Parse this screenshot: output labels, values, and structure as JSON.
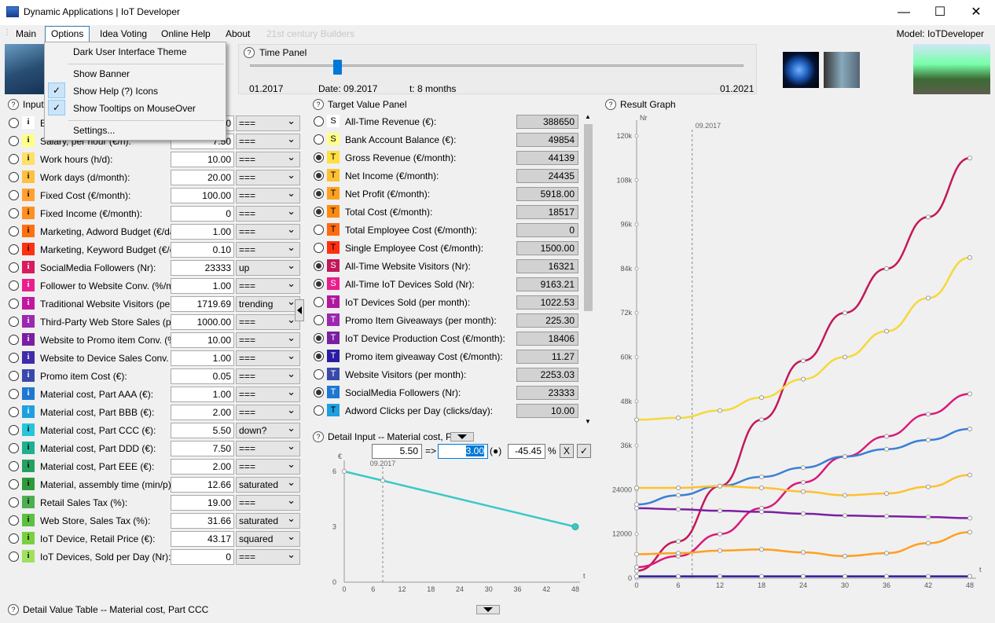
{
  "window": {
    "title": "Dynamic Applications | IoT Developer",
    "min": "—",
    "max": "☐",
    "close": "✕"
  },
  "menu": {
    "items": [
      "Main",
      "Options",
      "Idea Voting",
      "Online Help",
      "About",
      "21st century Builders"
    ],
    "model_label": "Model:  IoTDeveloper"
  },
  "options_menu": {
    "items": [
      "Dark User Interface Theme",
      "Show Banner",
      "Show Help (?) Icons",
      "Show Tooltips on MouseOver",
      "Settings..."
    ],
    "checked": [
      false,
      false,
      true,
      true,
      false
    ]
  },
  "time_panel": {
    "title": "Time Panel",
    "start": "01.2017",
    "date_label": "Date:  09.2017",
    "t_label": "t:   8  months",
    "end": "01.2021",
    "slider_value": 8
  },
  "input_panel": {
    "title": "Input",
    "rows": [
      {
        "label": "E",
        "value": "0",
        "mode": "===",
        "color": "#ffffff",
        "letter": "i",
        "checked": false
      },
      {
        "label": "Salary, per hour (€/h):",
        "value": "7.50",
        "mode": "===",
        "color": "#ffff88",
        "letter": "i",
        "checked": false
      },
      {
        "label": "Work hours (h/d):",
        "value": "10.00",
        "mode": "===",
        "color": "#ffe066",
        "letter": "i",
        "checked": false
      },
      {
        "label": "Work days (d/month):",
        "value": "20.00",
        "mode": "===",
        "color": "#ffc040",
        "letter": "i",
        "checked": false
      },
      {
        "label": "Fixed Cost (€/month):",
        "value": "100.00",
        "mode": "===",
        "color": "#ffa030",
        "letter": "i",
        "checked": false
      },
      {
        "label": "Fixed Income (€/month):",
        "value": "0",
        "mode": "===",
        "color": "#ff9020",
        "letter": "i",
        "checked": false
      },
      {
        "label": "Marketing, Adword Budget (€/day):",
        "value": "1.00",
        "mode": "===",
        "color": "#ff7010",
        "letter": "i",
        "checked": false
      },
      {
        "label": "Marketing, Keyword Budget (€/click",
        "value": "0.10",
        "mode": "===",
        "color": "#ff3010",
        "letter": "i",
        "checked": false
      },
      {
        "label": "SocialMedia Followers (Nr):",
        "value": "23333",
        "mode": "up",
        "color": "#d81b60",
        "letter": "i",
        "checked": false
      },
      {
        "label": "Follower to Website Conv. (%/month",
        "value": "1.00",
        "mode": "===",
        "color": "#e91e8c",
        "letter": "i",
        "checked": false
      },
      {
        "label": "Traditional Website Visitors (per mo",
        "value": "1719.69",
        "mode": "trending",
        "color": "#c2189f",
        "letter": "i",
        "checked": false
      },
      {
        "label": "Third-Party Web Store Sales (per mo",
        "value": "1000.00",
        "mode": "===",
        "color": "#9c27b0",
        "letter": "i",
        "checked": false
      },
      {
        "label": "Website to Promo item Conv. (%/mo",
        "value": "10.00",
        "mode": "===",
        "color": "#7b1fa2",
        "letter": "i",
        "checked": false
      },
      {
        "label": "Website to Device Sales Conv. (%/",
        "value": "1.00",
        "mode": "===",
        "color": "#3f2ca8",
        "letter": "i",
        "checked": false
      },
      {
        "label": "Promo item Cost (€):",
        "value": "0.05",
        "mode": "===",
        "color": "#3949ab",
        "letter": "i",
        "checked": false
      },
      {
        "label": "Material cost, Part AAA (€):",
        "value": "1.00",
        "mode": "===",
        "color": "#1e78d2",
        "letter": "i",
        "checked": false
      },
      {
        "label": "Material cost, Part BBB (€):",
        "value": "2.00",
        "mode": "===",
        "color": "#1ea0e0",
        "letter": "i",
        "checked": false
      },
      {
        "label": "Material cost, Part CCC (€):",
        "value": "5.50",
        "mode": "down?",
        "color": "#26c6da",
        "letter": "i",
        "checked": false
      },
      {
        "label": "Material cost, Part DDD (€):",
        "value": "7.50",
        "mode": "===",
        "color": "#20b090",
        "letter": "i",
        "checked": false
      },
      {
        "label": "Material cost, Part EEE (€):",
        "value": "2.00",
        "mode": "===",
        "color": "#26a060",
        "letter": "i",
        "checked": false
      },
      {
        "label": "Material, assembly time (min/p):",
        "value": "12.66",
        "mode": "saturated",
        "color": "#2e9a3a",
        "letter": "i",
        "checked": false
      },
      {
        "label": "Retail Sales Tax (%):",
        "value": "19.00",
        "mode": "===",
        "color": "#4caf50",
        "letter": "i",
        "checked": false
      },
      {
        "label": "Web Store, Sales Tax (%):",
        "value": "31.66",
        "mode": "saturated",
        "color": "#5cc040",
        "letter": "i",
        "checked": false
      },
      {
        "label": "IoT Device, Retail Price (€):",
        "value": "43.17",
        "mode": "squared",
        "color": "#78d040",
        "letter": "i",
        "checked": false
      },
      {
        "label": "IoT Devices, Sold per Day (Nr):",
        "value": "0",
        "mode": "===",
        "color": "#a0e060",
        "letter": "i",
        "checked": false
      }
    ]
  },
  "target_panel": {
    "title": "Target Value Panel",
    "rows": [
      {
        "label": "All-Time Revenue (€):",
        "value": "388650",
        "letter": "S",
        "color": "#ffffff",
        "checked": false
      },
      {
        "label": "Bank Account Balance (€):",
        "value": "49854",
        "letter": "S",
        "color": "#ffff88",
        "checked": false
      },
      {
        "label": "Gross Revenue (€/month):",
        "value": "44139",
        "letter": "T",
        "color": "#ffe040",
        "checked": true
      },
      {
        "label": "Net Income (€/month):",
        "value": "24435",
        "letter": "T",
        "color": "#ffc030",
        "checked": true
      },
      {
        "label": "Net Profit (€/month):",
        "value": "5918.00",
        "letter": "T",
        "color": "#ffa020",
        "checked": true
      },
      {
        "label": "Total Cost (€/month):",
        "value": "18517",
        "letter": "T",
        "color": "#ff8a10",
        "checked": true
      },
      {
        "label": "Total Employee Cost (€/month):",
        "value": "0",
        "letter": "T",
        "color": "#ff6a10",
        "checked": false
      },
      {
        "label": "Single Employee Cost (€/month):",
        "value": "1500.00",
        "letter": "T",
        "color": "#ff3010",
        "checked": false
      },
      {
        "label": "All-Time Website Visitors (Nr):",
        "value": "16321",
        "letter": "S",
        "color": "#c2185b",
        "checked": true
      },
      {
        "label": "All-Time IoT Devices Sold (Nr):",
        "value": "9163.21",
        "letter": "S",
        "color": "#e91e8c",
        "checked": true
      },
      {
        "label": "IoT Devices Sold (per month):",
        "value": "1022.53",
        "letter": "T",
        "color": "#b0189f",
        "checked": false
      },
      {
        "label": "Promo Item Giveaways (per month):",
        "value": "225.30",
        "letter": "T",
        "color": "#9c27b0",
        "checked": false
      },
      {
        "label": "IoT Device Production Cost (€/month):",
        "value": "18406",
        "letter": "T",
        "color": "#7b1fa2",
        "checked": true
      },
      {
        "label": "Promo item giveaway Cost (€/month):",
        "value": "11.27",
        "letter": "T",
        "color": "#2a1ca0",
        "checked": true
      },
      {
        "label": "Website Visitors (per month):",
        "value": "2253.03",
        "letter": "T",
        "color": "#3949ab",
        "checked": false
      },
      {
        "label": "SocialMedia Followers (Nr):",
        "value": "23333",
        "letter": "T",
        "color": "#1e78d2",
        "checked": true
      },
      {
        "label": "Adword Clicks per Day (clicks/day):",
        "value": "10.00",
        "letter": "T",
        "color": "#1ea0e0",
        "checked": false
      }
    ]
  },
  "detail_input": {
    "title": "Detail Input -- Material cost, Part C",
    "from_value": "5.50",
    "arrow": "=>",
    "to_value": "3.00",
    "mode_symbol": "(●)",
    "pct_value": "-45.45",
    "pct_unit": "%",
    "cancel": "X",
    "ok": "✓"
  },
  "detail_chart": {
    "y_unit": "€",
    "x_unit": "t",
    "marker": "09.2017",
    "y_ticks": [
      "0",
      "3",
      "6"
    ],
    "x_ticks": [
      "0",
      "6",
      "12",
      "18",
      "24",
      "30",
      "36",
      "42",
      "48"
    ]
  },
  "result_graph": {
    "title": "Result Graph",
    "y_unit": "Nr",
    "x_unit": "t",
    "marker": "09.2017",
    "y_ticks": [
      "0",
      "12000",
      "24000",
      "36k",
      "48k",
      "60k",
      "72k",
      "84k",
      "96k",
      "108k",
      "120k"
    ],
    "x_ticks": [
      "0",
      "6",
      "12",
      "18",
      "24",
      "30",
      "36",
      "42",
      "48"
    ]
  },
  "bottom": {
    "title": "Detail Value Table -- Material cost, Part CCC"
  },
  "chart_data": [
    {
      "type": "line",
      "title": "Detail Input -- Material cost, Part C",
      "xlabel": "t",
      "ylabel": "€",
      "xlim": [
        0,
        48
      ],
      "ylim": [
        0,
        6
      ],
      "series": [
        {
          "values": [
            [
              0,
              6.0
            ],
            [
              8,
              5.5
            ],
            [
              48,
              3.0
            ]
          ],
          "color": "#3cc8c8"
        }
      ]
    },
    {
      "type": "line",
      "title": "Result Graph",
      "xlabel": "t",
      "ylabel": "Nr",
      "xlim": [
        0,
        48
      ],
      "ylim": [
        0,
        120000
      ],
      "series": [
        {
          "color": "#c2185b",
          "values": [
            [
              0,
              2000
            ],
            [
              6,
              10000
            ],
            [
              12,
              25000
            ],
            [
              18,
              43000
            ],
            [
              24,
              59000
            ],
            [
              30,
              72000
            ],
            [
              36,
              84000
            ],
            [
              42,
              98000
            ],
            [
              48,
              114000
            ]
          ]
        },
        {
          "color": "#f5d83a",
          "values": [
            [
              0,
              43000
            ],
            [
              6,
              43500
            ],
            [
              12,
              45500
            ],
            [
              18,
              49000
            ],
            [
              24,
              54000
            ],
            [
              30,
              60000
            ],
            [
              36,
              67000
            ],
            [
              42,
              76000
            ],
            [
              48,
              87000
            ]
          ]
        },
        {
          "color": "#d81b7a",
          "values": [
            [
              0,
              3000
            ],
            [
              6,
              6000
            ],
            [
              12,
              12000
            ],
            [
              18,
              19000
            ],
            [
              24,
              26000
            ],
            [
              30,
              33000
            ],
            [
              36,
              38500
            ],
            [
              42,
              44500
            ],
            [
              48,
              50000
            ]
          ]
        },
        {
          "color": "#3a7fd5",
          "values": [
            [
              0,
              20000
            ],
            [
              6,
              22500
            ],
            [
              12,
              25000
            ],
            [
              18,
              27500
            ],
            [
              24,
              30000
            ],
            [
              30,
              33000
            ],
            [
              36,
              35000
            ],
            [
              42,
              37500
            ],
            [
              48,
              40500
            ]
          ]
        },
        {
          "color": "#ffc030",
          "values": [
            [
              0,
              24500
            ],
            [
              6,
              24500
            ],
            [
              12,
              25000
            ],
            [
              18,
              24500
            ],
            [
              24,
              23500
            ],
            [
              30,
              22500
            ],
            [
              36,
              23000
            ],
            [
              42,
              24800
            ],
            [
              48,
              28000
            ]
          ]
        },
        {
          "color": "#7b1fa2",
          "values": [
            [
              0,
              19000
            ],
            [
              6,
              18700
            ],
            [
              12,
              18300
            ],
            [
              18,
              18000
            ],
            [
              24,
              17500
            ],
            [
              30,
              17000
            ],
            [
              36,
              16800
            ],
            [
              42,
              16600
            ],
            [
              48,
              16300
            ]
          ]
        },
        {
          "color": "#ffa020",
          "values": [
            [
              0,
              6500
            ],
            [
              6,
              6800
            ],
            [
              12,
              7500
            ],
            [
              18,
              7800
            ],
            [
              24,
              7000
            ],
            [
              30,
              6000
            ],
            [
              36,
              6800
            ],
            [
              42,
              9500
            ],
            [
              48,
              12500
            ]
          ]
        },
        {
          "color": "#2a1ca0",
          "values": [
            [
              0,
              500
            ],
            [
              6,
              500
            ],
            [
              12,
              500
            ],
            [
              18,
              500
            ],
            [
              24,
              500
            ],
            [
              30,
              500
            ],
            [
              36,
              500
            ],
            [
              42,
              500
            ],
            [
              48,
              500
            ]
          ]
        }
      ]
    }
  ]
}
